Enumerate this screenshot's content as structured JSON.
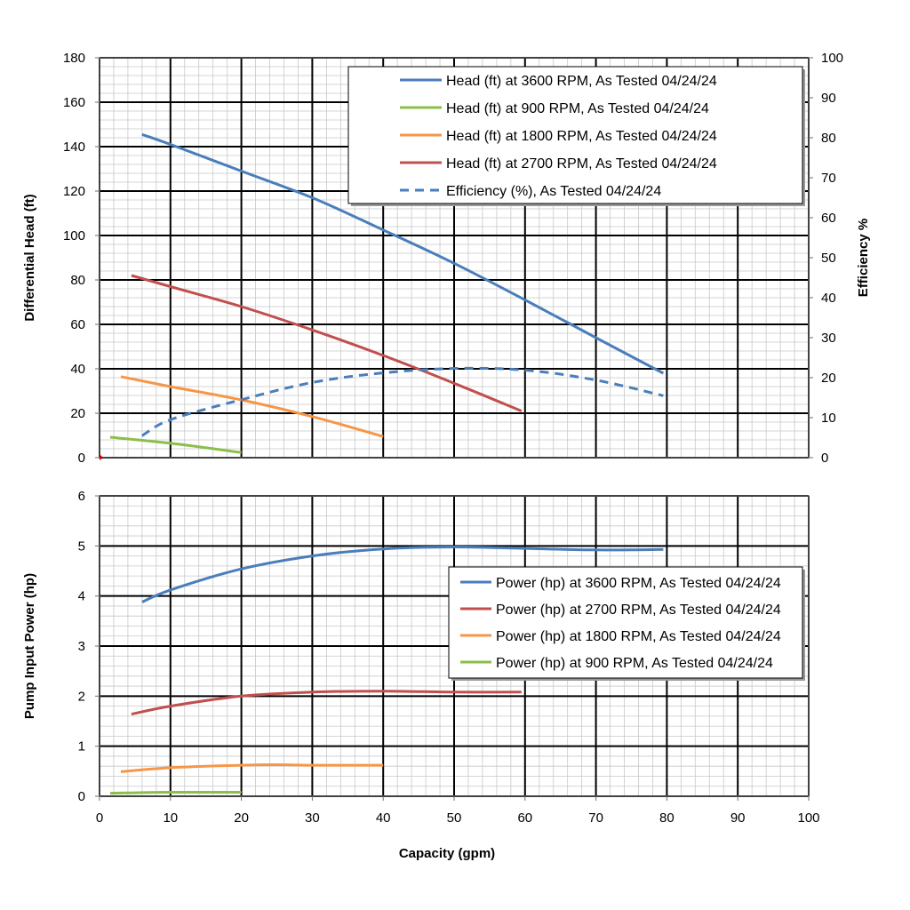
{
  "chart_data": [
    {
      "type": "line",
      "ylabel": "Differential Head (ft)",
      "y2label": "Efficiency %",
      "xlim": [
        0,
        100
      ],
      "ylim": [
        0,
        180
      ],
      "y2lim": [
        0,
        100
      ],
      "grid": true,
      "legend_position": "top-right",
      "x_ticks": [
        0,
        10,
        20,
        30,
        40,
        50,
        60,
        70,
        80,
        90,
        100
      ],
      "y_ticks": [
        0,
        20,
        40,
        60,
        80,
        100,
        120,
        140,
        160,
        180
      ],
      "y2_ticks": [
        0,
        10,
        20,
        30,
        40,
        50,
        60,
        70,
        80,
        90,
        100
      ],
      "series": [
        {
          "name": "Head (ft) at 3600 RPM, As Tested 04/24/24",
          "color": "#4a7ebb",
          "style": "solid",
          "axis": "left",
          "points": [
            [
              6,
              145.5
            ],
            [
              10,
              141
            ],
            [
              20,
              129
            ],
            [
              30,
              117
            ],
            [
              40,
              102.5
            ],
            [
              50,
              87.5
            ],
            [
              60,
              71
            ],
            [
              70,
              54
            ],
            [
              79.5,
              38
            ]
          ]
        },
        {
          "name": "Head (ft) at 900 RPM, As Tested 04/24/24",
          "color": "#8cbf4a",
          "style": "solid",
          "axis": "left",
          "points": [
            [
              1.5,
              9.2
            ],
            [
              10,
              6.5
            ],
            [
              20,
              2.3
            ]
          ]
        },
        {
          "name": "Head (ft) at 1800 RPM, As Tested 04/24/24",
          "color": "#f79646",
          "style": "solid",
          "axis": "left",
          "points": [
            [
              3,
              36.5
            ],
            [
              10,
              32
            ],
            [
              20,
              26
            ],
            [
              30,
              18.5
            ],
            [
              40,
              9.5
            ]
          ]
        },
        {
          "name": "Head (ft) at 2700 RPM, As Tested 04/24/24",
          "color": "#c0504d",
          "style": "solid",
          "axis": "left",
          "points": [
            [
              4.5,
              82
            ],
            [
              10,
              77
            ],
            [
              20,
              68
            ],
            [
              30,
              57.5
            ],
            [
              40,
              46
            ],
            [
              50,
              33.5
            ],
            [
              59.5,
              21
            ]
          ]
        },
        {
          "name": "Efficiency (%), As Tested 04/24/24",
          "color": "#4a7ebb",
          "style": "dashed",
          "axis": "right",
          "points": [
            [
              6,
              5.5
            ],
            [
              10,
              9.5
            ],
            [
              20,
              14.5
            ],
            [
              30,
              18.8
            ],
            [
              40,
              21.2
            ],
            [
              50,
              22.3
            ],
            [
              60,
              21.9
            ],
            [
              70,
              19.4
            ],
            [
              79.5,
              15.5
            ]
          ]
        }
      ]
    },
    {
      "type": "line",
      "xlabel": "Capacity (gpm)",
      "ylabel": "Pump Input Power (hp)",
      "xlim": [
        0,
        100
      ],
      "ylim": [
        0,
        6
      ],
      "grid": true,
      "legend_position": "right",
      "x_ticks": [
        0,
        10,
        20,
        30,
        40,
        50,
        60,
        70,
        80,
        90,
        100
      ],
      "y_ticks": [
        0,
        1,
        2,
        3,
        4,
        5,
        6
      ],
      "series": [
        {
          "name": "Power (hp) at 3600 RPM, As Tested 04/24/24",
          "color": "#4a7ebb",
          "style": "solid",
          "points": [
            [
              6,
              3.88
            ],
            [
              10,
              4.12
            ],
            [
              20,
              4.54
            ],
            [
              30,
              4.8
            ],
            [
              40,
              4.94
            ],
            [
              50,
              4.98
            ],
            [
              60,
              4.95
            ],
            [
              70,
              4.92
            ],
            [
              79.5,
              4.93
            ]
          ]
        },
        {
          "name": "Power (hp) at 2700 RPM, As Tested 04/24/24",
          "color": "#c0504d",
          "style": "solid",
          "points": [
            [
              4.5,
              1.64
            ],
            [
              10,
              1.8
            ],
            [
              20,
              2.0
            ],
            [
              30,
              2.08
            ],
            [
              40,
              2.1
            ],
            [
              50,
              2.08
            ],
            [
              59.5,
              2.08
            ]
          ]
        },
        {
          "name": "Power (hp) at 1800 RPM, As Tested 04/24/24",
          "color": "#f79646",
          "style": "solid",
          "points": [
            [
              3,
              0.49
            ],
            [
              10,
              0.57
            ],
            [
              20,
              0.62
            ],
            [
              25,
              0.63
            ],
            [
              30,
              0.62
            ],
            [
              40,
              0.62
            ]
          ]
        },
        {
          "name": "Power (hp) at 900 RPM, As Tested 04/24/24",
          "color": "#8cbf4a",
          "style": "solid",
          "points": [
            [
              1.5,
              0.06
            ],
            [
              5,
              0.07
            ],
            [
              10,
              0.08
            ],
            [
              20,
              0.08
            ]
          ]
        }
      ]
    }
  ]
}
